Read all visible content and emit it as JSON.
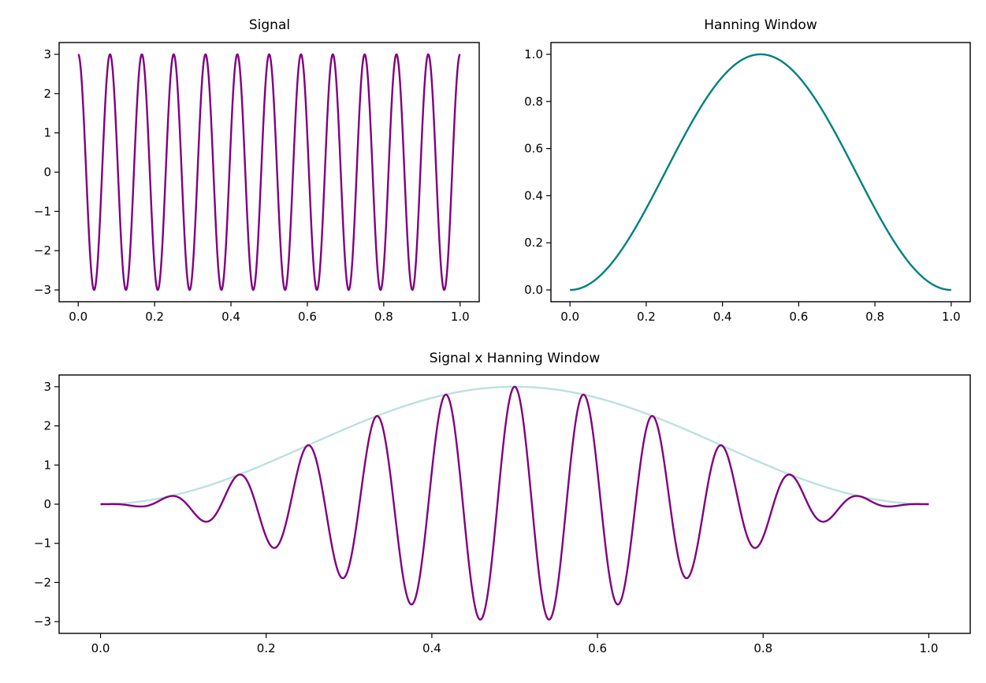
{
  "colors": {
    "signal": "#800080",
    "window": "#008080",
    "window_faded": "#bde0e0",
    "axes": "#000000",
    "background": "#ffffff"
  },
  "chart_data": [
    {
      "id": "signal",
      "type": "line",
      "title": "Signal",
      "xlabel": "",
      "ylabel": "",
      "function": "3*cos(2*pi*12*x)",
      "x": [
        0.0,
        0.0417,
        0.0833,
        0.125,
        0.1667,
        0.2083,
        0.25,
        0.2917,
        0.3333,
        0.375,
        0.4167,
        0.4583,
        0.5,
        0.5417,
        0.5833,
        0.625,
        0.6667,
        0.7083,
        0.75,
        0.7917,
        0.8333,
        0.875,
        0.9167,
        0.9583,
        1.0
      ],
      "series": [
        {
          "color": "#800080",
          "values": [
            3,
            -3,
            3,
            -3,
            3,
            -3,
            3,
            -3,
            3,
            -3,
            3,
            -3,
            3,
            -3,
            3,
            -3,
            3,
            -3,
            3,
            -3,
            3,
            -3,
            3,
            -3,
            3
          ]
        }
      ],
      "xlim": [
        -0.05,
        1.05
      ],
      "ylim": [
        -3.3,
        3.3
      ],
      "xticks": [
        0.0,
        0.2,
        0.4,
        0.6,
        0.8,
        1.0
      ],
      "xticklabels": [
        "0.0",
        "0.2",
        "0.4",
        "0.6",
        "0.8",
        "1.0"
      ],
      "yticks": [
        3,
        2,
        1,
        0,
        -1,
        -2,
        -3
      ],
      "yticklabels": [
        "3",
        "2",
        "1",
        "0",
        "−1",
        "−2",
        "−3"
      ],
      "grid": false,
      "legend": "none"
    },
    {
      "id": "window",
      "type": "line",
      "title": "Hanning Window",
      "xlabel": "",
      "ylabel": "",
      "function": "0.5*(1-cos(2*pi*x))",
      "x": [
        0.0,
        0.1,
        0.2,
        0.3,
        0.4,
        0.5,
        0.6,
        0.7,
        0.8,
        0.9,
        1.0
      ],
      "series": [
        {
          "color": "#008080",
          "values": [
            0.0,
            0.095,
            0.345,
            0.655,
            0.905,
            1.0,
            0.905,
            0.655,
            0.345,
            0.095,
            0.0
          ]
        }
      ],
      "xlim": [
        -0.05,
        1.05
      ],
      "ylim": [
        -0.05,
        1.05
      ],
      "xticks": [
        0.0,
        0.2,
        0.4,
        0.6,
        0.8,
        1.0
      ],
      "xticklabels": [
        "0.0",
        "0.2",
        "0.4",
        "0.6",
        "0.8",
        "1.0"
      ],
      "yticks": [
        1.0,
        0.8,
        0.6,
        0.4,
        0.2,
        0.0
      ],
      "yticklabels": [
        "1.0",
        "0.8",
        "0.6",
        "0.4",
        "0.2",
        "0.0"
      ],
      "grid": false,
      "legend": "none"
    },
    {
      "id": "product",
      "type": "line",
      "title": "Signal x Hanning Window",
      "xlabel": "",
      "ylabel": "",
      "x": [
        0.0,
        0.0833,
        0.1667,
        0.25,
        0.3333,
        0.4167,
        0.5,
        0.5833,
        0.6667,
        0.75,
        0.8333,
        0.9167,
        1.0
      ],
      "series": [
        {
          "color": "#800080",
          "function": "3*cos(2*pi*12*x)*0.5*(1-cos(2*pi*x))",
          "values": [
            0.0,
            0.2,
            0.75,
            1.5,
            2.25,
            2.8,
            3.0,
            2.8,
            2.25,
            1.5,
            0.75,
            0.2,
            0.0
          ]
        },
        {
          "color": "#bde0e0",
          "function": "3*0.5*(1-cos(2*pi*x))",
          "values": [
            0.0,
            0.2,
            0.75,
            1.5,
            2.25,
            2.8,
            3.0,
            2.8,
            2.25,
            1.5,
            0.75,
            0.2,
            0.0
          ]
        }
      ],
      "xlim": [
        -0.05,
        1.05
      ],
      "ylim": [
        -3.3,
        3.3
      ],
      "xticks": [
        0.0,
        0.2,
        0.4,
        0.6,
        0.8,
        1.0
      ],
      "xticklabels": [
        "0.0",
        "0.2",
        "0.4",
        "0.6",
        "0.8",
        "1.0"
      ],
      "yticks": [
        3,
        2,
        1,
        0,
        -1,
        -2,
        -3
      ],
      "yticklabels": [
        "3",
        "2",
        "1",
        "0",
        "−1",
        "−2",
        "−3"
      ],
      "grid": false,
      "legend": "none"
    }
  ]
}
